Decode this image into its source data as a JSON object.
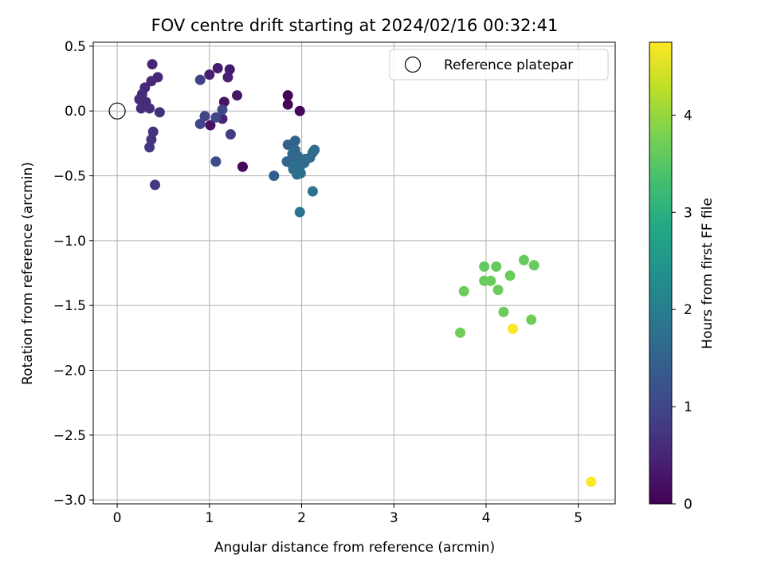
{
  "chart_data": {
    "type": "scatter",
    "title": "FOV centre drift starting at 2024/02/16 00:32:41",
    "xlabel": "Angular distance from reference (arcmin)",
    "ylabel": "Rotation from reference (arcmin)",
    "xlim": [
      -0.26,
      5.4
    ],
    "ylim": [
      -3.03,
      0.53
    ],
    "xticks": [
      0,
      1,
      2,
      3,
      4,
      5
    ],
    "xtick_labels": [
      "0",
      "1",
      "2",
      "3",
      "4",
      "5"
    ],
    "yticks": [
      0.5,
      0.0,
      -0.5,
      -1.0,
      -1.5,
      -2.0,
      -2.5,
      -3.0
    ],
    "ytick_labels": [
      "0.5",
      "0.0",
      "−0.5",
      "−1.0",
      "−1.5",
      "−2.0",
      "−2.5",
      "−3.0"
    ],
    "grid": true,
    "legend": {
      "position": "upper-right",
      "entries": [
        {
          "label": "Reference platepar",
          "marker": "open-circle"
        }
      ]
    },
    "reference_point": {
      "x": 0,
      "y": 0
    },
    "colorbar": {
      "label": "Hours from first FF file",
      "range": [
        0,
        4.75
      ],
      "ticks": [
        0,
        1,
        2,
        3,
        4
      ],
      "tick_labels": [
        "0",
        "1",
        "2",
        "3",
        "4"
      ],
      "colormap": "viridis"
    },
    "points": [
      {
        "x": 1.85,
        "y": 0.12,
        "h": 0.05
      },
      {
        "x": 1.85,
        "y": 0.05,
        "h": 0.05
      },
      {
        "x": 1.98,
        "y": 0.0,
        "h": 0.08
      },
      {
        "x": 1.36,
        "y": -0.43,
        "h": 0.1
      },
      {
        "x": 1.01,
        "y": -0.11,
        "h": 0.22
      },
      {
        "x": 1.16,
        "y": 0.07,
        "h": 0.25
      },
      {
        "x": 1.3,
        "y": 0.12,
        "h": 0.28
      },
      {
        "x": 1.22,
        "y": 0.32,
        "h": 0.35
      },
      {
        "x": 1.09,
        "y": 0.33,
        "h": 0.38
      },
      {
        "x": 1.2,
        "y": 0.26,
        "h": 0.4
      },
      {
        "x": 1.0,
        "y": 0.28,
        "h": 0.42
      },
      {
        "x": 1.14,
        "y": -0.06,
        "h": 0.45
      },
      {
        "x": 0.38,
        "y": 0.36,
        "h": 0.5
      },
      {
        "x": 0.44,
        "y": 0.26,
        "h": 0.52
      },
      {
        "x": 0.37,
        "y": 0.23,
        "h": 0.55
      },
      {
        "x": 0.3,
        "y": 0.18,
        "h": 0.55
      },
      {
        "x": 0.27,
        "y": 0.13,
        "h": 0.58
      },
      {
        "x": 0.24,
        "y": 0.09,
        "h": 0.6
      },
      {
        "x": 0.31,
        "y": 0.07,
        "h": 0.6
      },
      {
        "x": 0.26,
        "y": 0.02,
        "h": 0.62
      },
      {
        "x": 0.35,
        "y": 0.02,
        "h": 0.62
      },
      {
        "x": 0.46,
        "y": -0.01,
        "h": 0.65
      },
      {
        "x": 0.39,
        "y": -0.16,
        "h": 0.68
      },
      {
        "x": 0.37,
        "y": -0.22,
        "h": 0.7
      },
      {
        "x": 0.35,
        "y": -0.28,
        "h": 0.72
      },
      {
        "x": 0.41,
        "y": -0.57,
        "h": 0.75
      },
      {
        "x": 1.23,
        "y": -0.18,
        "h": 0.85
      },
      {
        "x": 0.9,
        "y": 0.24,
        "h": 0.9
      },
      {
        "x": 0.9,
        "y": -0.1,
        "h": 0.95
      },
      {
        "x": 0.95,
        "y": -0.04,
        "h": 0.95
      },
      {
        "x": 1.07,
        "y": -0.05,
        "h": 1.0
      },
      {
        "x": 1.14,
        "y": 0.01,
        "h": 1.05
      },
      {
        "x": 1.07,
        "y": -0.39,
        "h": 1.1
      },
      {
        "x": 1.7,
        "y": -0.5,
        "h": 1.4
      },
      {
        "x": 1.85,
        "y": -0.26,
        "h": 1.5
      },
      {
        "x": 1.93,
        "y": -0.23,
        "h": 1.5
      },
      {
        "x": 1.84,
        "y": -0.39,
        "h": 1.55
      },
      {
        "x": 1.88,
        "y": -0.4,
        "h": 1.55
      },
      {
        "x": 1.9,
        "y": -0.33,
        "h": 1.6
      },
      {
        "x": 1.93,
        "y": -0.3,
        "h": 1.6
      },
      {
        "x": 1.96,
        "y": -0.35,
        "h": 1.62
      },
      {
        "x": 1.99,
        "y": -0.42,
        "h": 1.62
      },
      {
        "x": 2.04,
        "y": -0.37,
        "h": 1.65
      },
      {
        "x": 2.03,
        "y": -0.4,
        "h": 1.65
      },
      {
        "x": 2.09,
        "y": -0.36,
        "h": 1.68
      },
      {
        "x": 2.14,
        "y": -0.3,
        "h": 1.7
      },
      {
        "x": 2.12,
        "y": -0.32,
        "h": 1.7
      },
      {
        "x": 1.91,
        "y": -0.45,
        "h": 1.72
      },
      {
        "x": 1.95,
        "y": -0.49,
        "h": 1.72
      },
      {
        "x": 1.99,
        "y": -0.48,
        "h": 1.75
      },
      {
        "x": 1.92,
        "y": -0.42,
        "h": 1.75
      },
      {
        "x": 2.12,
        "y": -0.62,
        "h": 1.78
      },
      {
        "x": 1.98,
        "y": -0.78,
        "h": 1.8
      },
      {
        "x": 3.98,
        "y": -1.2,
        "h": 3.6
      },
      {
        "x": 4.11,
        "y": -1.2,
        "h": 3.6
      },
      {
        "x": 4.41,
        "y": -1.15,
        "h": 3.62
      },
      {
        "x": 4.52,
        "y": -1.19,
        "h": 3.62
      },
      {
        "x": 3.98,
        "y": -1.31,
        "h": 3.64
      },
      {
        "x": 4.05,
        "y": -1.31,
        "h": 3.64
      },
      {
        "x": 4.26,
        "y": -1.27,
        "h": 3.66
      },
      {
        "x": 4.13,
        "y": -1.38,
        "h": 3.66
      },
      {
        "x": 3.76,
        "y": -1.39,
        "h": 3.68
      },
      {
        "x": 4.19,
        "y": -1.55,
        "h": 3.68
      },
      {
        "x": 4.49,
        "y": -1.61,
        "h": 3.7
      },
      {
        "x": 3.72,
        "y": -1.71,
        "h": 3.7
      },
      {
        "x": 4.29,
        "y": -1.68,
        "h": 4.72
      },
      {
        "x": 5.14,
        "y": -2.86,
        "h": 4.75
      }
    ]
  }
}
